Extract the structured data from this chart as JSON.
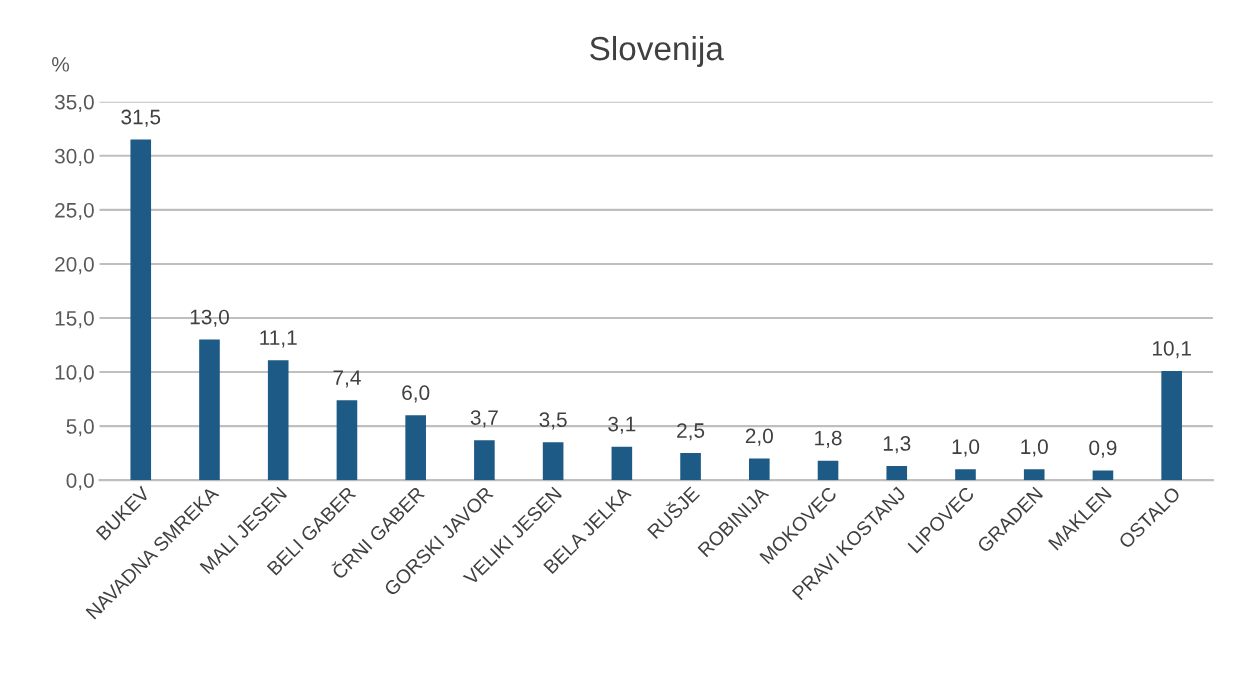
{
  "chart_data": {
    "type": "bar",
    "title": "Slovenija",
    "ylabel": "%",
    "categories": [
      "BUKEV",
      "NAVADNA SMREKA",
      "MALI JESEN",
      "BELI GABER",
      "ČRNI GABER",
      "GORSKI JAVOR",
      "VELIKI JESEN",
      "BELA JELKA",
      "RUŠJE",
      "ROBINIJA",
      "MOKOVEC",
      "PRAVI KOSTANJ",
      "LIPOVEC",
      "GRADEN",
      "MAKLEN",
      "OSTALO"
    ],
    "values": [
      31.5,
      13.0,
      11.1,
      7.4,
      6.0,
      3.7,
      3.5,
      3.1,
      2.5,
      2.0,
      1.8,
      1.3,
      1.0,
      1.0,
      0.9,
      10.1
    ],
    "value_labels": [
      "31,5",
      "13,0",
      "11,1",
      "7,4",
      "6,0",
      "3,7",
      "3,5",
      "3,1",
      "2,5",
      "2,0",
      "1,8",
      "1,3",
      "1,0",
      "1,0",
      "0,9",
      "10,1"
    ],
    "color": "#1d5a85",
    "ylim": [
      0,
      35
    ],
    "yticks": [
      {
        "value": 0,
        "label": "0,0"
      },
      {
        "value": 5,
        "label": "5,0"
      },
      {
        "value": 10,
        "label": "10,0"
      },
      {
        "value": 15,
        "label": "15,0"
      },
      {
        "value": 20,
        "label": "20,0"
      },
      {
        "value": 25,
        "label": "25,0"
      },
      {
        "value": 30,
        "label": "30,0"
      },
      {
        "value": 35,
        "label": "35,0"
      }
    ],
    "grid": "y"
  }
}
